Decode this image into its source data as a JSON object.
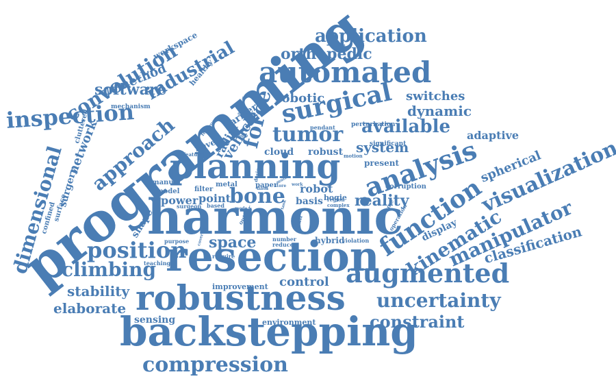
{
  "word_color": "#4a7db4",
  "words": [
    {
      "text": "programming"
    },
    {
      "text": "harmonic"
    },
    {
      "text": "backstepping"
    },
    {
      "text": "resection"
    },
    {
      "text": "robustness"
    },
    {
      "text": "planning"
    },
    {
      "text": "automated"
    },
    {
      "text": "analysis"
    },
    {
      "text": "surgical"
    },
    {
      "text": "augmented"
    },
    {
      "text": "function"
    },
    {
      "text": "visualization"
    },
    {
      "text": "manipulator"
    },
    {
      "text": "kinematic"
    },
    {
      "text": "uncertainty"
    },
    {
      "text": "position"
    },
    {
      "text": "compression"
    },
    {
      "text": "inspection"
    },
    {
      "text": "approach"
    },
    {
      "text": "dimensional"
    },
    {
      "text": "convolution"
    },
    {
      "text": "climbing"
    },
    {
      "text": "tumor"
    },
    {
      "text": "force"
    },
    {
      "text": "application"
    },
    {
      "text": "available"
    },
    {
      "text": "bone"
    },
    {
      "text": "constraint"
    },
    {
      "text": "industrial"
    },
    {
      "text": "software"
    },
    {
      "text": "orthopedic"
    },
    {
      "text": "classification"
    },
    {
      "text": "space"
    },
    {
      "text": "elaborate"
    },
    {
      "text": "stability"
    },
    {
      "text": "reality"
    },
    {
      "text": "system"
    },
    {
      "text": "dynamic"
    },
    {
      "text": "switches"
    },
    {
      "text": "spherical"
    },
    {
      "text": "network"
    },
    {
      "text": "control"
    },
    {
      "text": "adaptive"
    },
    {
      "text": "robotic"
    },
    {
      "text": "vehicle"
    },
    {
      "text": "method"
    },
    {
      "text": "display"
    },
    {
      "text": "sensing"
    },
    {
      "text": "power"
    },
    {
      "text": "point"
    },
    {
      "text": "robot"
    },
    {
      "text": "cloud"
    },
    {
      "text": "robust"
    },
    {
      "text": "surgery"
    },
    {
      "text": "barrier"
    },
    {
      "text": "radial"
    },
    {
      "text": "basis"
    },
    {
      "text": "hybrid"
    },
    {
      "text": "shape"
    },
    {
      "text": "present"
    },
    {
      "text": "workspace"
    },
    {
      "text": "healthy"
    },
    {
      "text": "mechanism"
    },
    {
      "text": "cluttered"
    },
    {
      "text": "surface"
    },
    {
      "text": "confined"
    },
    {
      "text": "manual"
    },
    {
      "text": "model"
    },
    {
      "text": "filter"
    },
    {
      "text": "metal"
    },
    {
      "text": "paper"
    },
    {
      "text": "design"
    },
    {
      "text": "surgeon"
    },
    {
      "text": "based"
    },
    {
      "text": "improvement"
    },
    {
      "text": "environment"
    },
    {
      "text": "teaching"
    },
    {
      "text": "purpose"
    },
    {
      "text": "corruption"
    },
    {
      "text": "perturbation"
    },
    {
      "text": "significant"
    },
    {
      "text": "pendant"
    },
    {
      "text": "novel"
    },
    {
      "text": "feature"
    },
    {
      "text": "ferrous"
    },
    {
      "text": "bogie"
    },
    {
      "text": "complex"
    },
    {
      "text": "region"
    },
    {
      "text": "volume"
    },
    {
      "text": "operation"
    },
    {
      "text": "plan"
    },
    {
      "text": "outlier"
    },
    {
      "text": "number"
    },
    {
      "text": "reduce"
    },
    {
      "text": "violation"
    },
    {
      "text": "require"
    },
    {
      "text": "data"
    },
    {
      "text": "motion"
    },
    {
      "text": "single"
    },
    {
      "text": "addition"
    },
    {
      "text": "work"
    },
    {
      "text": "result"
    },
    {
      "text": "store"
    },
    {
      "text": "task"
    },
    {
      "text": "covering"
    },
    {
      "text": "mode"
    },
    {
      "text": "multi"
    }
  ]
}
